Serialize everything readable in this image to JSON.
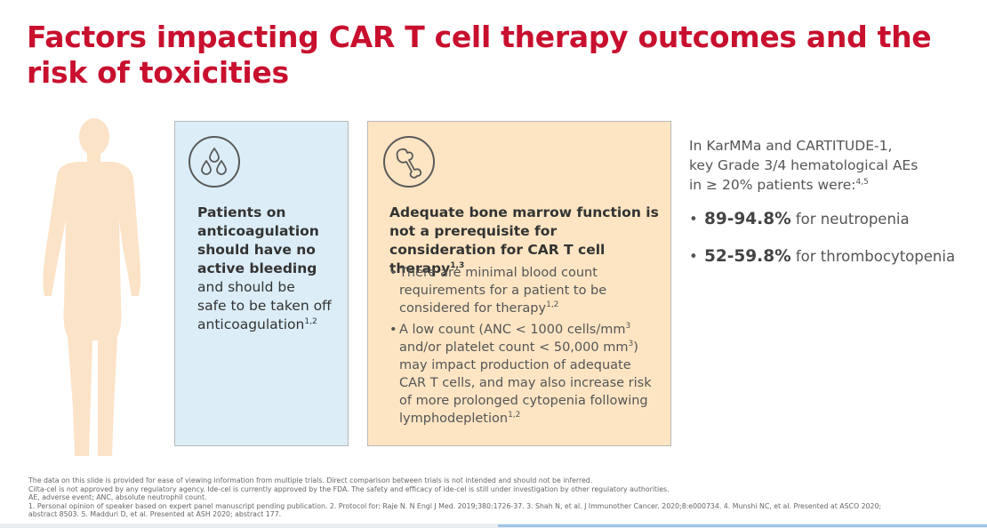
{
  "title": "Factors impacting CAR T cell therapy outcomes and the risk of toxicities",
  "colors": {
    "title": "#c8102e",
    "card_blue": "#dcedf8",
    "card_orange": "#fde5c3",
    "figure": "#fbe3c7"
  },
  "icons": {
    "figure": "human-figure-icon",
    "blue_card": "blood-drops-icon",
    "orange_card": "bone-icon"
  },
  "blue_card": {
    "bold_lines": [
      "Patients on",
      "anticoagulation",
      "should have no",
      "active bleeding"
    ],
    "normal_lines": [
      "and should be",
      "safe to be taken off",
      "anticoagulation"
    ],
    "sup": "1,2"
  },
  "orange_card": {
    "heading": "Adequate bone marrow function is not a prerequisite for consideration for CAR T cell therapy",
    "heading_sup": "1,3",
    "bullet1": {
      "text": "There are minimal blood count requirements for a patient to be considered for therapy",
      "sup": "1,2"
    },
    "bullet2": {
      "part1": "A low count (ANC < 1000 cells/mm",
      "exp1": "3",
      "part2": " and/or platelet count < 50,000 mm",
      "exp2": "3",
      "part3": ") may impact production of adequate CAR T cells, and may also increase risk of more prolonged cytopenia following lymphodepletion",
      "sup": "1,2"
    }
  },
  "right_panel": {
    "intro_lines": [
      "In KarMMa and CARTITUDE-1,",
      "key Grade 3/4 hematological AEs",
      "in ≥ 20% patients were:"
    ],
    "intro_sup": "4,5",
    "stats": [
      {
        "value": "89-94.8%",
        "label": " for neutropenia"
      },
      {
        "value": "52-59.8%",
        "label": " for thrombocytopenia"
      }
    ]
  },
  "footnotes": [
    "The data on this slide is provided for ease of viewing information from multiple trials. Direct comparison between trials is not intended and should not be inferred.",
    "Cilta-cel is not approved by any regulatory agency. Ide-cel is currently approved by the FDA. The safety and efficacy of ide-cel is still under investigation by other regulatory authorities.",
    "AE, adverse event; ANC, absolute neutrophil count.",
    "1. Personal opinion of speaker based on expert panel manuscript pending publication. 2. Protocol for: Raje N. N Engl J Med. 2019;380:1726-37. 3. Shah N, et al. J Immunother Cancer. 2020;8:e000734. 4. Munshi NC, et al. Presented at ASCO 2020;",
    "abstract 8503. 5. Madduri D, et al. Presented at ASH 2020; abstract 177."
  ]
}
